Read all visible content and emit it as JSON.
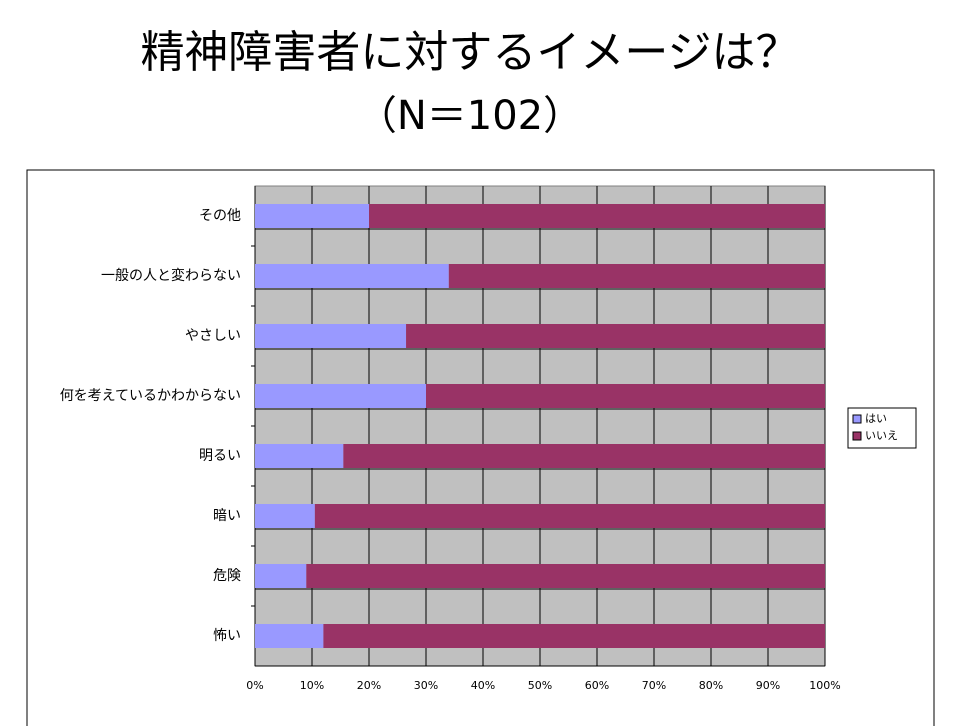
{
  "chart_data": {
    "type": "stacked_bar_horizontal",
    "title": "精神障害者に対するイメージは？",
    "subtitle": "（N＝102）",
    "categories": [
      "その他",
      "一般の人と変わらない",
      "やさしい",
      "何を考えているかわからない",
      "明るい",
      "暗い",
      "危険",
      "怖い"
    ],
    "series": [
      {
        "name": "はい",
        "color": "#9999ff",
        "values": [
          20,
          34,
          26.5,
          30,
          15.5,
          10.5,
          9,
          12
        ]
      },
      {
        "name": "いいえ",
        "color": "#993366",
        "values": [
          80,
          66,
          73.5,
          70,
          84.5,
          89.5,
          91,
          88
        ]
      }
    ],
    "xlim": [
      0,
      100
    ],
    "xticks": [
      {
        "value": 0,
        "label": "0%"
      },
      {
        "value": 10,
        "label": "10%"
      },
      {
        "value": 20,
        "label": "20%"
      },
      {
        "value": 30,
        "label": "30%"
      },
      {
        "value": 40,
        "label": "40%"
      },
      {
        "value": 50,
        "label": "50%"
      },
      {
        "value": 60,
        "label": "60%"
      },
      {
        "value": 70,
        "label": "70%"
      },
      {
        "value": 80,
        "label": "80%"
      },
      {
        "value": 90,
        "label": "90%"
      },
      {
        "value": 100,
        "label": "100%"
      }
    ],
    "grid": true,
    "legend": "right"
  }
}
